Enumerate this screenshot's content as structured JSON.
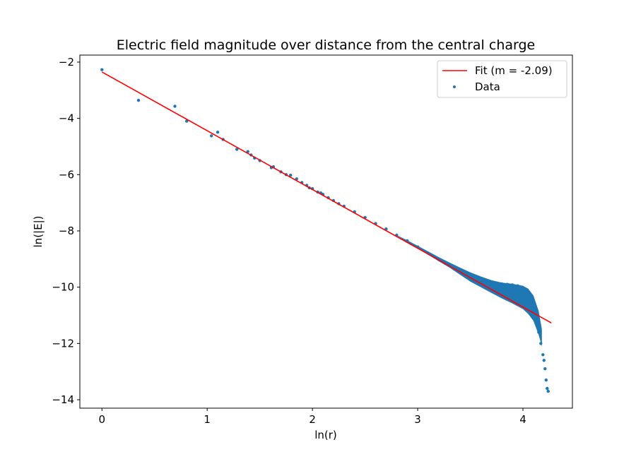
{
  "chart_data": {
    "type": "scatter",
    "title": "Electric field magnitude over distance from the central charge",
    "xlabel": "ln(r)",
    "ylabel": "ln(|E|)",
    "xlim": [
      -0.21,
      4.47
    ],
    "ylim": [
      -14.3,
      -1.75
    ],
    "xticks": [
      0,
      1,
      2,
      3,
      4
    ],
    "yticks": [
      -14,
      -12,
      -10,
      -8,
      -6,
      -4,
      -2
    ],
    "grid": false,
    "legend_position": "top-right",
    "colors": {
      "fit": "#ff0000",
      "data": "#1f77b4"
    },
    "series": [
      {
        "name": "Fit (m = -2.09)",
        "kind": "line",
        "slope": -2.09,
        "intercept": -2.35,
        "x": [
          0,
          4.27
        ],
        "y": [
          -2.35,
          -11.27
        ]
      },
      {
        "name": "Data",
        "kind": "scatter",
        "points": [
          [
            0,
            -2.27
          ],
          [
            0.347,
            -3.36
          ],
          [
            0.693,
            -3.57
          ],
          [
            0.805,
            -4.1
          ],
          [
            1.04,
            -4.62
          ],
          [
            1.099,
            -4.49
          ],
          [
            1.151,
            -4.75
          ],
          [
            1.282,
            -5.1
          ],
          [
            1.386,
            -5.18
          ],
          [
            1.417,
            -5.3
          ],
          [
            1.45,
            -5.41
          ],
          [
            1.5,
            -5.5
          ],
          [
            1.609,
            -5.75
          ],
          [
            1.629,
            -5.72
          ],
          [
            1.7,
            -5.9
          ],
          [
            1.75,
            -6.0
          ],
          [
            1.792,
            -6.02
          ],
          [
            1.85,
            -6.15
          ],
          [
            1.9,
            -6.28
          ],
          [
            1.946,
            -6.38
          ],
          [
            1.97,
            -6.47
          ],
          [
            2.0,
            -6.5
          ],
          [
            2.05,
            -6.62
          ],
          [
            2.079,
            -6.65
          ],
          [
            2.1,
            -6.7
          ],
          [
            2.15,
            -6.82
          ],
          [
            2.2,
            -6.92
          ],
          [
            2.25,
            -7.03
          ],
          [
            2.3,
            -7.12
          ],
          [
            2.4,
            -7.32
          ],
          [
            2.5,
            -7.52
          ],
          [
            2.6,
            -7.74
          ],
          [
            2.7,
            -7.93
          ],
          [
            2.8,
            -8.15
          ],
          [
            2.9,
            -8.35
          ],
          [
            3.0,
            -8.57
          ],
          [
            3.1,
            -8.79
          ],
          [
            3.2,
            -9.02
          ],
          [
            3.3,
            -9.23
          ],
          [
            3.4,
            -9.45
          ],
          [
            3.5,
            -9.62
          ],
          [
            3.6,
            -9.75
          ],
          [
            3.7,
            -9.84
          ],
          [
            3.8,
            -9.88
          ],
          [
            3.85,
            -9.9
          ],
          [
            3.9,
            -9.92
          ],
          [
            3.95,
            -9.95
          ],
          [
            4.0,
            -10.05
          ],
          [
            4.05,
            -10.25
          ],
          [
            4.08,
            -10.5
          ],
          [
            4.11,
            -10.85
          ],
          [
            4.13,
            -11.2
          ],
          [
            4.15,
            -11.6
          ],
          [
            4.17,
            -12.0
          ],
          [
            4.19,
            -12.4
          ],
          [
            4.2,
            -12.6
          ],
          [
            4.21,
            -12.9
          ],
          [
            4.22,
            -13.3
          ],
          [
            4.23,
            -13.6
          ],
          [
            4.24,
            -13.7
          ]
        ],
        "spread_band": [
          [
            2.8,
            -8.15,
            -8.17
          ],
          [
            2.9,
            -8.33,
            -8.4
          ],
          [
            3.0,
            -8.53,
            -8.62
          ],
          [
            3.1,
            -8.73,
            -8.85
          ],
          [
            3.2,
            -8.93,
            -9.08
          ],
          [
            3.3,
            -9.12,
            -9.3
          ],
          [
            3.4,
            -9.3,
            -9.55
          ],
          [
            3.5,
            -9.47,
            -9.8
          ],
          [
            3.6,
            -9.62,
            -10.0
          ],
          [
            3.7,
            -9.75,
            -10.2
          ],
          [
            3.8,
            -9.84,
            -10.4
          ],
          [
            3.9,
            -9.88,
            -10.58
          ],
          [
            4.0,
            -9.95,
            -10.78
          ],
          [
            4.05,
            -10.05,
            -10.95
          ],
          [
            4.1,
            -10.3,
            -11.2
          ],
          [
            4.15,
            -10.85,
            -11.7
          ],
          [
            4.18,
            -11.5,
            -12.1
          ]
        ]
      }
    ]
  }
}
